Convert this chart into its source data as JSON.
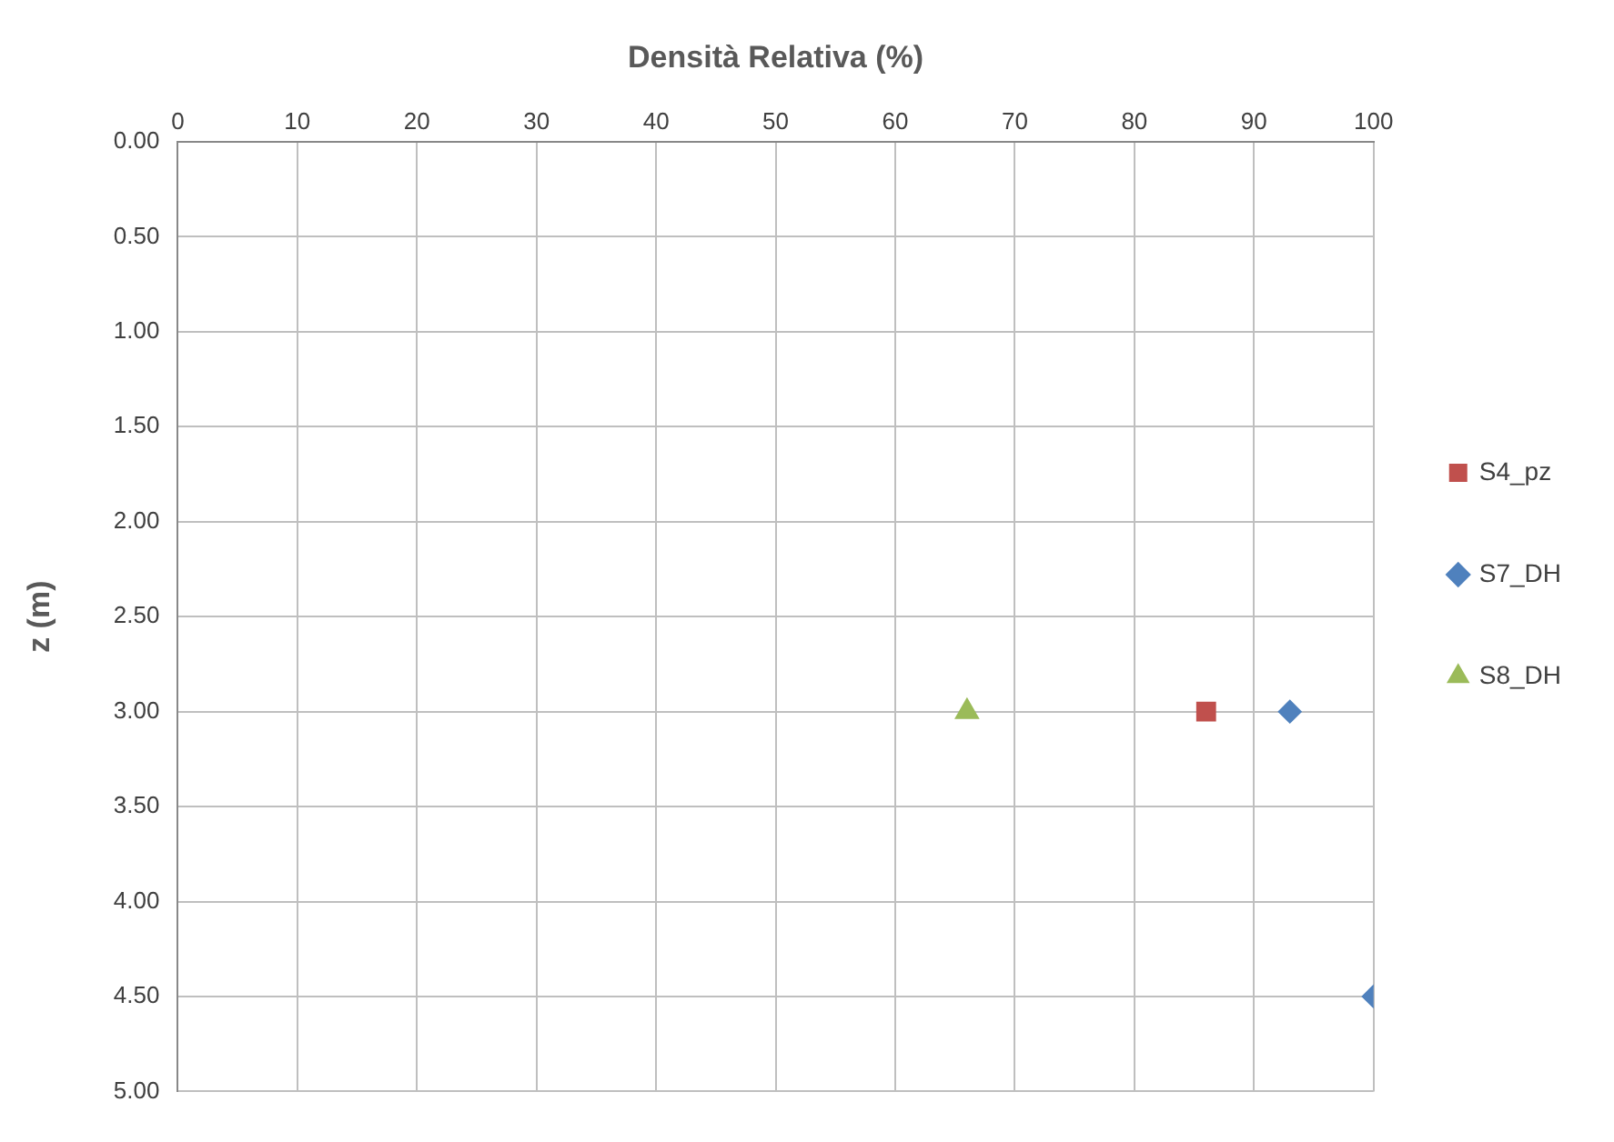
{
  "chart_data": {
    "type": "scatter",
    "xlabel": "Densità Relativa (%)",
    "ylabel": "z (m)",
    "xlim": [
      0,
      100
    ],
    "xticks": [
      0,
      10,
      20,
      30,
      40,
      50,
      60,
      70,
      80,
      90,
      100
    ],
    "ylim": [
      5,
      0
    ],
    "yticks": [
      {
        "value": 0,
        "label": "0.00"
      },
      {
        "value": 0.5,
        "label": "0.50"
      },
      {
        "value": 1,
        "label": "1.00"
      },
      {
        "value": 1.5,
        "label": "1.50"
      },
      {
        "value": 2,
        "label": "2.00"
      },
      {
        "value": 2.5,
        "label": "2.50"
      },
      {
        "value": 3,
        "label": "3.00"
      },
      {
        "value": 3.5,
        "label": "3.50"
      },
      {
        "value": 4,
        "label": "4.00"
      },
      {
        "value": 4.5,
        "label": "4.50"
      },
      {
        "value": 5,
        "label": "5.00"
      }
    ],
    "grid": true,
    "legend": "right",
    "series": [
      {
        "name": "S4_pz",
        "color": "#c0504d",
        "marker": "square",
        "x": [
          86
        ],
        "values": [
          3
        ]
      },
      {
        "name": "S7_DH",
        "color": "#4f81bd",
        "marker": "diamond",
        "x": [
          93,
          100
        ],
        "values": [
          3,
          4.5
        ]
      },
      {
        "name": "S8_DH",
        "color": "#9bbb59",
        "marker": "triangle",
        "x": [
          66
        ],
        "values": [
          3
        ]
      }
    ]
  }
}
